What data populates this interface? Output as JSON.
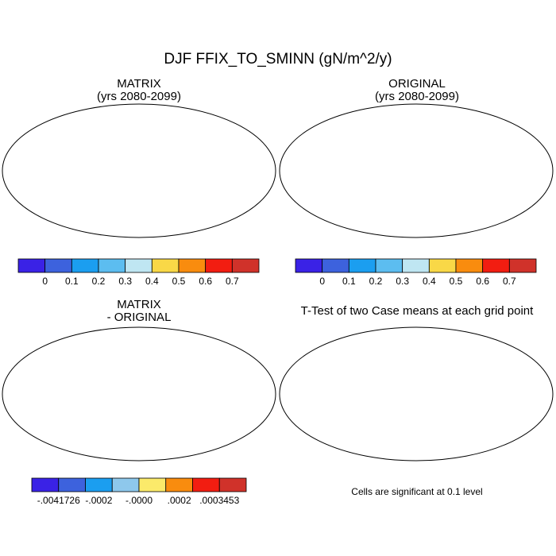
{
  "title": "DJF FFIX_TO_SMINN (gN/m^2/y)",
  "panels": {
    "top_left": {
      "title": "MATRIX",
      "subtitle": "(yrs 2080-2099)"
    },
    "top_right": {
      "title": "ORIGINAL",
      "subtitle": "(yrs 2080-2099)"
    },
    "bottom_left": {
      "title": "MATRIX",
      "subtitle": "- ORIGINAL"
    },
    "bottom_right": {
      "title": "T-Test of two Case means at each grid point"
    }
  },
  "colorbar_top": {
    "labels": [
      "0",
      "0.1",
      "0.2",
      "0.3",
      "0.4",
      "0.5",
      "0.6",
      "0.7"
    ],
    "colors": [
      "#3a22e6",
      "#3d62dd",
      "#1b9ef0",
      "#5cbdf0",
      "#bfe6f2",
      "#f9d847",
      "#f98c0e",
      "#f21d11",
      "#d0322a"
    ]
  },
  "colorbar_bottom": {
    "labels": [
      "-.0041726",
      "-.0002",
      "-.0000",
      ".0002",
      ".0003453"
    ],
    "colors": [
      "#3a22e6",
      "#3d62dd",
      "#1b9ef0",
      "#8ec8ec",
      "#fbea6a",
      "#f98c0e",
      "#f21d11",
      "#d0322a"
    ]
  },
  "footnote": "Cells are significant at 0.1 level",
  "map_colors": {
    "ocean": "#ffffff",
    "coast": "#000000",
    "boreal": "#3d62dd",
    "temperate": "#1b9ef0",
    "tropical_hot": "#d0322a",
    "tropical_warm": "#f21d11",
    "savanna": "#f98c0e",
    "dry": "#f9d847",
    "diff_base": "#8ec8ec",
    "diff_yellow": "#fbea6a",
    "diff_blue": "#3d62dd"
  }
}
